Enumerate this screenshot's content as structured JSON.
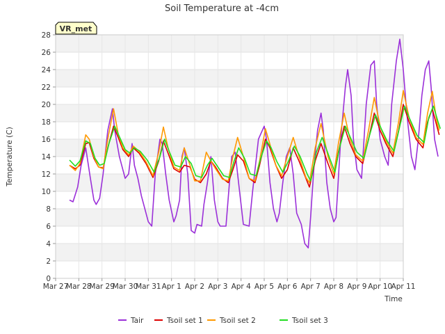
{
  "chart_data": {
    "type": "line",
    "title": "Soil Temperature at -4cm",
    "xlabel": "Time",
    "ylabel": "Temperature (C)",
    "station_label": "VR_met",
    "ylim": [
      0,
      28
    ],
    "y_ticks": [
      0,
      2,
      4,
      6,
      8,
      10,
      12,
      14,
      16,
      18,
      20,
      22,
      24,
      26,
      28
    ],
    "x_ticks": [
      "Mar 27",
      "Mar 28",
      "Mar 29",
      "Mar 30",
      "Mar 31",
      "Apr 1",
      "Apr 2",
      "Apr 3",
      "Apr 4",
      "Apr 5",
      "Apr 6",
      "Apr 7",
      "Apr 8",
      "Apr 9",
      "Apr 10",
      "Apr 11"
    ],
    "grid": true,
    "legend_position": "bottom",
    "x_unit": "days since Mar 27 00:00",
    "series": [
      {
        "name": "Tair",
        "color": "#9b30d9",
        "points": [
          [
            0.6,
            9.0
          ],
          [
            0.75,
            8.8
          ],
          [
            0.95,
            10.5
          ],
          [
            1.1,
            13.0
          ],
          [
            1.25,
            14.5
          ],
          [
            1.3,
            15.0
          ],
          [
            1.5,
            11.5
          ],
          [
            1.65,
            9.0
          ],
          [
            1.75,
            8.5
          ],
          [
            1.9,
            9.2
          ],
          [
            2.05,
            12.0
          ],
          [
            2.25,
            17.0
          ],
          [
            2.45,
            19.5
          ],
          [
            2.55,
            17.0
          ],
          [
            2.75,
            14.0
          ],
          [
            3.0,
            11.5
          ],
          [
            3.15,
            12.0
          ],
          [
            3.3,
            15.5
          ],
          [
            3.4,
            13.0
          ],
          [
            3.55,
            11.5
          ],
          [
            3.7,
            9.5
          ],
          [
            3.85,
            8.0
          ],
          [
            4.0,
            6.5
          ],
          [
            4.15,
            6.0
          ],
          [
            4.3,
            12.0
          ],
          [
            4.5,
            16.0
          ],
          [
            4.6,
            15.5
          ],
          [
            4.75,
            12.0
          ],
          [
            4.9,
            9.0
          ],
          [
            5.1,
            6.5
          ],
          [
            5.2,
            7.2
          ],
          [
            5.35,
            9.0
          ],
          [
            5.45,
            14.0
          ],
          [
            5.55,
            15.0
          ],
          [
            5.7,
            12.0
          ],
          [
            5.85,
            5.5
          ],
          [
            6.0,
            5.2
          ],
          [
            6.1,
            6.2
          ],
          [
            6.3,
            6.0
          ],
          [
            6.4,
            8.5
          ],
          [
            6.55,
            11.0
          ],
          [
            6.7,
            14.0
          ],
          [
            6.85,
            9.0
          ],
          [
            7.0,
            6.5
          ],
          [
            7.1,
            6.0
          ],
          [
            7.35,
            6.0
          ],
          [
            7.5,
            11.0
          ],
          [
            7.6,
            14.0
          ],
          [
            7.75,
            14.5
          ],
          [
            7.85,
            12.0
          ],
          [
            8.0,
            8.5
          ],
          [
            8.1,
            6.2
          ],
          [
            8.35,
            6.0
          ],
          [
            8.5,
            10.0
          ],
          [
            8.75,
            16.0
          ],
          [
            9.0,
            17.5
          ],
          [
            9.1,
            16.0
          ],
          [
            9.25,
            11.0
          ],
          [
            9.4,
            8.0
          ],
          [
            9.55,
            6.5
          ],
          [
            9.65,
            7.5
          ],
          [
            9.8,
            11.0
          ],
          [
            9.95,
            14.0
          ],
          [
            10.1,
            15.0
          ],
          [
            10.25,
            12.0
          ],
          [
            10.4,
            7.5
          ],
          [
            10.6,
            6.2
          ],
          [
            10.75,
            4.0
          ],
          [
            10.9,
            3.5
          ],
          [
            11.0,
            7.0
          ],
          [
            11.15,
            13.0
          ],
          [
            11.3,
            17.0
          ],
          [
            11.45,
            19.0
          ],
          [
            11.55,
            17.0
          ],
          [
            11.7,
            11.0
          ],
          [
            11.85,
            8.0
          ],
          [
            12.0,
            6.5
          ],
          [
            12.1,
            7.0
          ],
          [
            12.3,
            16.0
          ],
          [
            12.5,
            22.0
          ],
          [
            12.6,
            24.0
          ],
          [
            12.75,
            21.0
          ],
          [
            12.85,
            16.0
          ],
          [
            13.0,
            12.5
          ],
          [
            13.2,
            11.5
          ],
          [
            13.4,
            20.0
          ],
          [
            13.6,
            24.5
          ],
          [
            13.75,
            25.0
          ],
          [
            13.85,
            20.0
          ],
          [
            14.0,
            16.0
          ],
          [
            14.2,
            14.0
          ],
          [
            14.35,
            13.0
          ],
          [
            14.5,
            20.0
          ],
          [
            14.7,
            25.0
          ],
          [
            14.85,
            27.5
          ],
          [
            15.0,
            24.0
          ],
          [
            15.15,
            19.0
          ],
          [
            15.35,
            14.0
          ],
          [
            15.5,
            12.5
          ],
          [
            15.65,
            16.0
          ],
          [
            15.8,
            21.0
          ],
          [
            15.95,
            24.0
          ],
          [
            16.1,
            25.0
          ],
          [
            16.2,
            22.0
          ],
          [
            16.35,
            16.0
          ],
          [
            16.5,
            14.0
          ]
        ]
      },
      {
        "name": "Tsoil set 1",
        "color": "#dd0000",
        "points": [
          [
            0.6,
            13.0
          ],
          [
            0.85,
            12.6
          ],
          [
            1.05,
            13.0
          ],
          [
            1.3,
            15.5
          ],
          [
            1.45,
            15.6
          ],
          [
            1.65,
            13.8
          ],
          [
            1.85,
            12.8
          ],
          [
            2.05,
            12.7
          ],
          [
            2.25,
            15.0
          ],
          [
            2.5,
            17.5
          ],
          [
            2.7,
            16.2
          ],
          [
            2.9,
            14.8
          ],
          [
            3.15,
            14.0
          ],
          [
            3.35,
            15.0
          ],
          [
            3.6,
            14.4
          ],
          [
            3.9,
            13.2
          ],
          [
            4.2,
            11.6
          ],
          [
            4.45,
            13.5
          ],
          [
            4.65,
            15.8
          ],
          [
            4.85,
            14.4
          ],
          [
            5.1,
            12.6
          ],
          [
            5.35,
            12.2
          ],
          [
            5.55,
            13.0
          ],
          [
            5.8,
            12.8
          ],
          [
            6.0,
            11.4
          ],
          [
            6.25,
            11.0
          ],
          [
            6.5,
            12.0
          ],
          [
            6.7,
            13.5
          ],
          [
            6.9,
            12.8
          ],
          [
            7.2,
            11.5
          ],
          [
            7.45,
            11.0
          ],
          [
            7.65,
            12.5
          ],
          [
            7.85,
            14.2
          ],
          [
            8.1,
            13.5
          ],
          [
            8.35,
            11.5
          ],
          [
            8.6,
            11.0
          ],
          [
            8.8,
            13.0
          ],
          [
            9.05,
            16.0
          ],
          [
            9.25,
            15.0
          ],
          [
            9.5,
            13.0
          ],
          [
            9.75,
            11.5
          ],
          [
            10.0,
            12.5
          ],
          [
            10.25,
            15.0
          ],
          [
            10.5,
            13.5
          ],
          [
            10.8,
            11.5
          ],
          [
            10.95,
            10.5
          ],
          [
            11.2,
            13.5
          ],
          [
            11.45,
            15.5
          ],
          [
            11.75,
            13.2
          ],
          [
            12.0,
            11.5
          ],
          [
            12.2,
            14.5
          ],
          [
            12.45,
            17.5
          ],
          [
            12.7,
            15.5
          ],
          [
            12.95,
            14.0
          ],
          [
            13.25,
            13.2
          ],
          [
            13.5,
            16.0
          ],
          [
            13.75,
            19.0
          ],
          [
            14.0,
            17.0
          ],
          [
            14.25,
            15.5
          ],
          [
            14.55,
            14.0
          ],
          [
            14.8,
            17.0
          ],
          [
            15.0,
            20.0
          ],
          [
            15.25,
            18.0
          ],
          [
            15.55,
            16.0
          ],
          [
            15.85,
            15.0
          ],
          [
            16.05,
            18.0
          ],
          [
            16.25,
            19.5
          ],
          [
            16.45,
            17.5
          ],
          [
            16.55,
            16.5
          ]
        ]
      },
      {
        "name": "Tsoil set 2",
        "color": "#ff9900",
        "points": [
          [
            0.6,
            13.0
          ],
          [
            0.85,
            12.4
          ],
          [
            1.05,
            13.2
          ],
          [
            1.3,
            16.5
          ],
          [
            1.45,
            16.0
          ],
          [
            1.65,
            14.0
          ],
          [
            1.85,
            12.8
          ],
          [
            2.05,
            12.6
          ],
          [
            2.25,
            16.0
          ],
          [
            2.5,
            19.5
          ],
          [
            2.7,
            16.6
          ],
          [
            2.9,
            15.0
          ],
          [
            3.15,
            14.2
          ],
          [
            3.35,
            15.2
          ],
          [
            3.6,
            14.6
          ],
          [
            3.9,
            13.4
          ],
          [
            4.2,
            11.8
          ],
          [
            4.45,
            14.5
          ],
          [
            4.65,
            17.4
          ],
          [
            4.85,
            15.0
          ],
          [
            5.1,
            12.8
          ],
          [
            5.35,
            12.4
          ],
          [
            5.55,
            15.0
          ],
          [
            5.8,
            13.0
          ],
          [
            6.0,
            11.2
          ],
          [
            6.25,
            11.2
          ],
          [
            6.5,
            14.5
          ],
          [
            6.7,
            13.5
          ],
          [
            6.9,
            12.6
          ],
          [
            7.2,
            11.4
          ],
          [
            7.45,
            11.2
          ],
          [
            7.65,
            14.0
          ],
          [
            7.85,
            16.2
          ],
          [
            8.1,
            14.0
          ],
          [
            8.35,
            11.5
          ],
          [
            8.6,
            11.2
          ],
          [
            8.8,
            13.5
          ],
          [
            9.05,
            17.2
          ],
          [
            9.25,
            15.4
          ],
          [
            9.5,
            13.0
          ],
          [
            9.75,
            11.8
          ],
          [
            10.0,
            14.0
          ],
          [
            10.25,
            16.2
          ],
          [
            10.5,
            14.0
          ],
          [
            10.8,
            11.6
          ],
          [
            10.95,
            11.0
          ],
          [
            11.2,
            15.0
          ],
          [
            11.45,
            17.8
          ],
          [
            11.75,
            14.0
          ],
          [
            12.0,
            12.0
          ],
          [
            12.2,
            15.5
          ],
          [
            12.45,
            19.0
          ],
          [
            12.7,
            16.0
          ],
          [
            12.95,
            14.2
          ],
          [
            13.25,
            13.5
          ],
          [
            13.5,
            17.0
          ],
          [
            13.75,
            20.8
          ],
          [
            14.0,
            17.5
          ],
          [
            14.25,
            15.8
          ],
          [
            14.55,
            14.4
          ],
          [
            14.8,
            18.0
          ],
          [
            15.0,
            21.6
          ],
          [
            15.25,
            18.5
          ],
          [
            15.55,
            16.2
          ],
          [
            15.85,
            15.4
          ],
          [
            16.05,
            19.0
          ],
          [
            16.25,
            21.5
          ],
          [
            16.45,
            18.0
          ],
          [
            16.55,
            17.0
          ]
        ]
      },
      {
        "name": "Tsoil set 3",
        "color": "#22dd22",
        "points": [
          [
            0.6,
            13.6
          ],
          [
            0.85,
            12.9
          ],
          [
            1.05,
            13.5
          ],
          [
            1.3,
            15.8
          ],
          [
            1.5,
            15.5
          ],
          [
            1.7,
            13.8
          ],
          [
            1.9,
            13.0
          ],
          [
            2.1,
            13.2
          ],
          [
            2.3,
            15.5
          ],
          [
            2.55,
            17.5
          ],
          [
            2.8,
            16.0
          ],
          [
            3.0,
            14.8
          ],
          [
            3.2,
            14.4
          ],
          [
            3.4,
            15.0
          ],
          [
            3.65,
            14.6
          ],
          [
            3.95,
            13.6
          ],
          [
            4.25,
            12.2
          ],
          [
            4.5,
            14.0
          ],
          [
            4.7,
            16.0
          ],
          [
            4.9,
            14.6
          ],
          [
            5.15,
            13.0
          ],
          [
            5.4,
            12.8
          ],
          [
            5.6,
            14.0
          ],
          [
            5.85,
            13.2
          ],
          [
            6.05,
            11.8
          ],
          [
            6.3,
            11.6
          ],
          [
            6.55,
            13.0
          ],
          [
            6.75,
            13.8
          ],
          [
            6.95,
            13.0
          ],
          [
            7.25,
            11.8
          ],
          [
            7.5,
            11.6
          ],
          [
            7.7,
            13.5
          ],
          [
            7.9,
            15.0
          ],
          [
            8.15,
            13.8
          ],
          [
            8.4,
            12.0
          ],
          [
            8.65,
            11.8
          ],
          [
            8.85,
            13.8
          ],
          [
            9.1,
            15.8
          ],
          [
            9.3,
            15.0
          ],
          [
            9.55,
            13.4
          ],
          [
            9.8,
            12.2
          ],
          [
            10.05,
            13.5
          ],
          [
            10.3,
            15.2
          ],
          [
            10.55,
            14.0
          ],
          [
            10.85,
            12.0
          ],
          [
            11.0,
            11.2
          ],
          [
            11.25,
            14.5
          ],
          [
            11.5,
            16.2
          ],
          [
            11.8,
            14.0
          ],
          [
            12.05,
            12.2
          ],
          [
            12.25,
            15.0
          ],
          [
            12.5,
            17.5
          ],
          [
            12.75,
            16.0
          ],
          [
            13.0,
            14.5
          ],
          [
            13.3,
            13.8
          ],
          [
            13.55,
            16.5
          ],
          [
            13.8,
            18.8
          ],
          [
            14.05,
            17.2
          ],
          [
            14.3,
            15.8
          ],
          [
            14.6,
            14.6
          ],
          [
            14.85,
            17.5
          ],
          [
            15.05,
            19.8
          ],
          [
            15.3,
            18.2
          ],
          [
            15.6,
            16.4
          ],
          [
            15.9,
            15.6
          ],
          [
            16.1,
            18.5
          ],
          [
            16.3,
            19.8
          ],
          [
            16.5,
            18.0
          ],
          [
            16.6,
            17.2
          ]
        ]
      }
    ]
  }
}
